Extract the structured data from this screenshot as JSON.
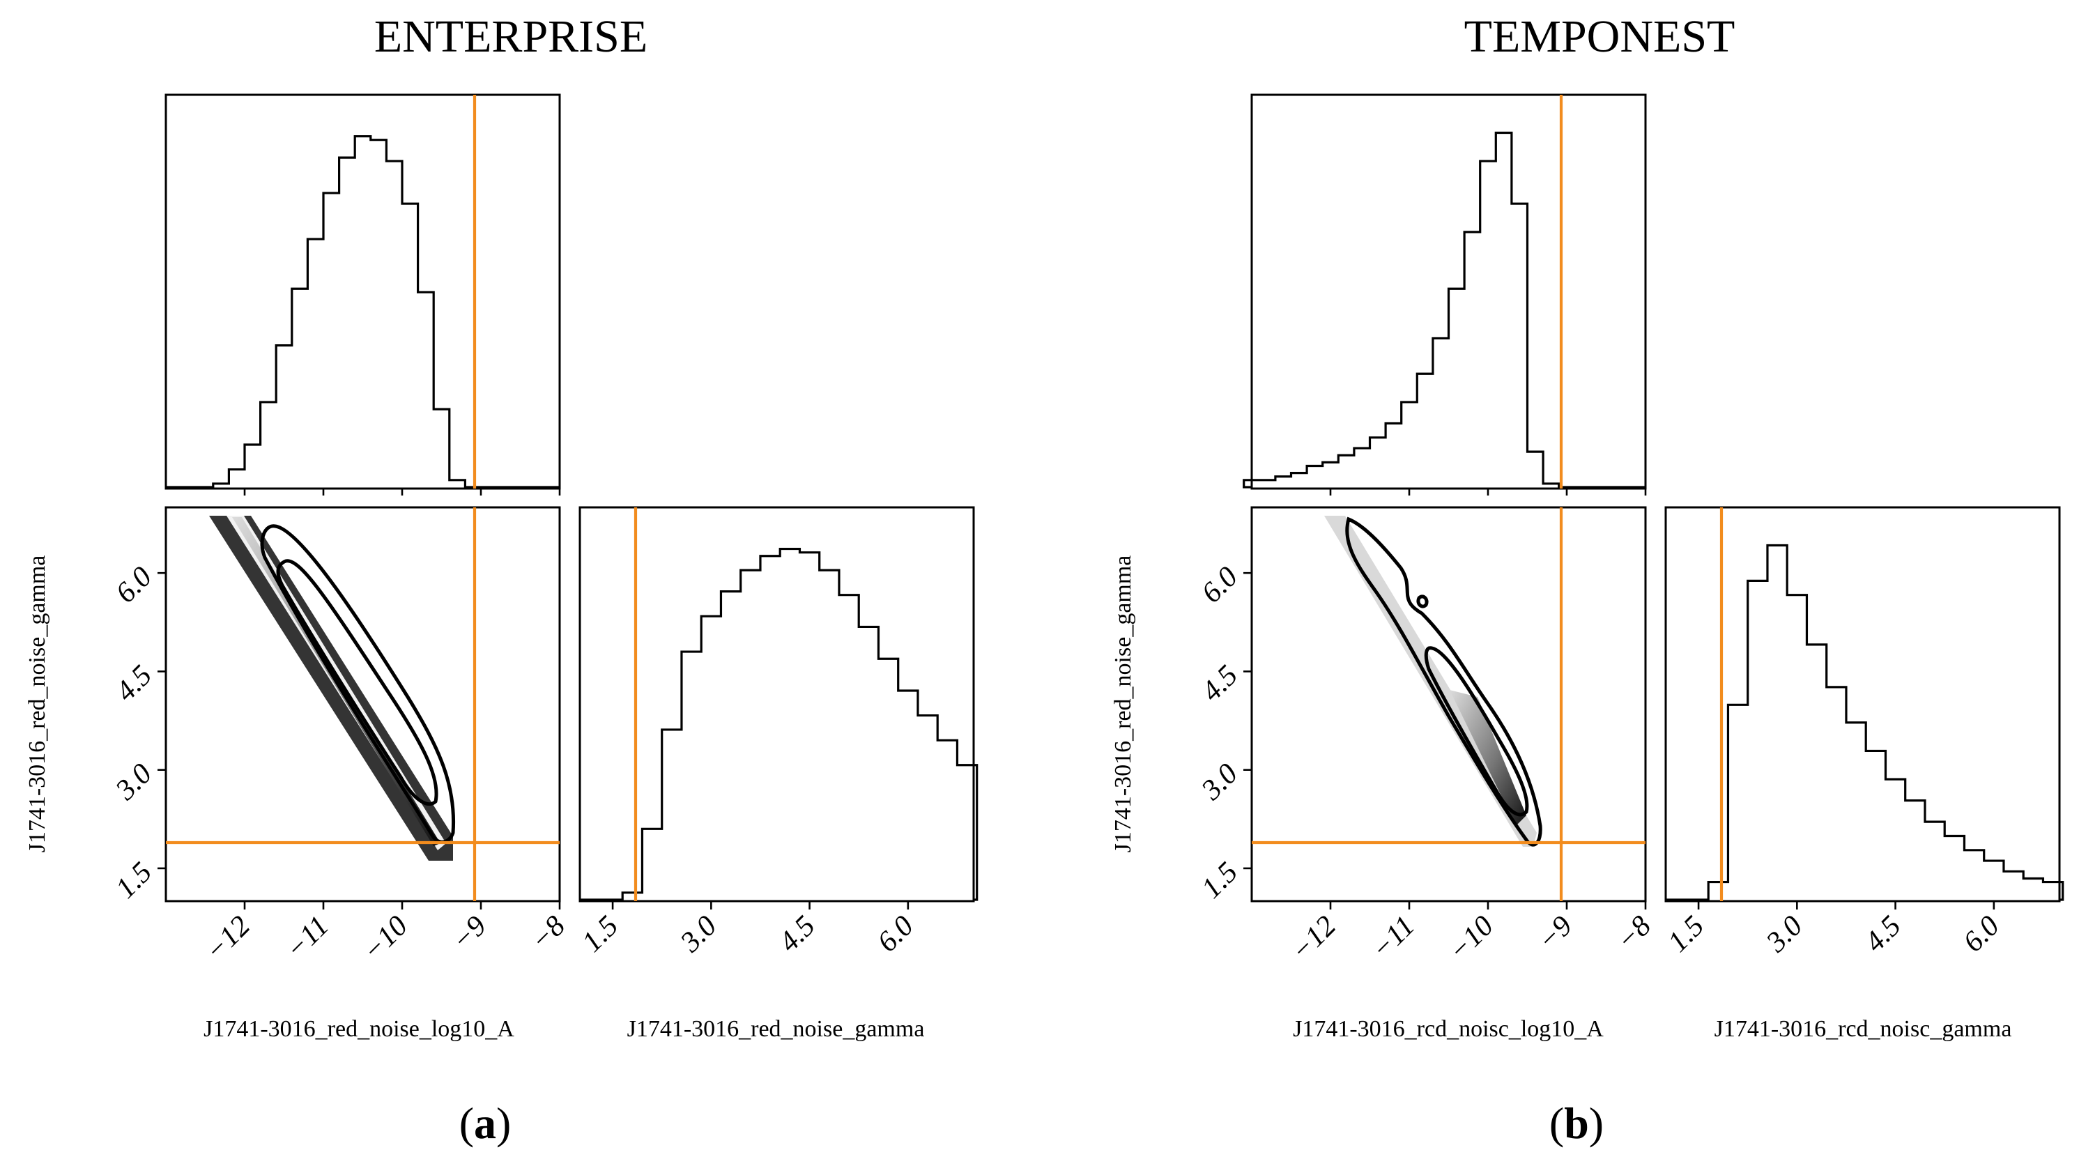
{
  "figure": {
    "captions": [
      "(a)",
      "(b)"
    ]
  },
  "chart_data": [
    {
      "type": "corner",
      "title": "ENTERPRISE",
      "caption": "(a)",
      "parameters": [
        "J1741-3016_red_noise_log10_A",
        "J1741-3016_red_noise_gamma"
      ],
      "xlabel_A": "J1741-3016_red_noise_log10_A",
      "xlabel_gamma": "J1741-3016_red_noise_gamma",
      "ylabel_gamma": "J1741-3016_red_noise_gamma",
      "range_log10_A": [
        -13,
        -8
      ],
      "range_gamma": [
        1.0,
        7.0
      ],
      "ticks_log10_A": [
        "−12",
        "−11",
        "−10",
        "−9",
        "−8"
      ],
      "ticks_gamma": [
        "1.5",
        "3.0",
        "4.5",
        "6.0"
      ],
      "truth": {
        "log10_A": -9.0,
        "gamma": 1.87
      },
      "hist_log10_A": {
        "x": [
          -12.3,
          -12.1,
          -11.9,
          -11.7,
          -11.5,
          -11.3,
          -11.1,
          -10.9,
          -10.7,
          -10.5,
          -10.3,
          -10.1,
          -9.9,
          -9.7,
          -9.5,
          -9.3
        ],
        "density": [
          0.01,
          0.05,
          0.12,
          0.24,
          0.4,
          0.56,
          0.7,
          0.83,
          0.93,
          0.99,
          0.98,
          0.92,
          0.8,
          0.55,
          0.22,
          0.02
        ]
      },
      "hist_gamma": {
        "x": [
          1.8,
          2.1,
          2.4,
          2.7,
          3.0,
          3.3,
          3.6,
          3.9,
          4.2,
          4.5,
          4.8,
          5.1,
          5.4,
          5.7,
          6.0,
          6.3,
          6.6,
          6.9
        ],
        "density": [
          0.02,
          0.2,
          0.48,
          0.7,
          0.8,
          0.87,
          0.93,
          0.97,
          0.99,
          0.98,
          0.93,
          0.86,
          0.77,
          0.68,
          0.59,
          0.52,
          0.45,
          0.38
        ]
      },
      "joint": {
        "ridge_log10_A": [
          -12.0,
          -9.4
        ],
        "ridge_gamma": [
          7.0,
          1.85
        ],
        "contour_levels": 2
      }
    },
    {
      "type": "corner",
      "title": "TEMPONEST",
      "caption": "(b)",
      "parameters": [
        "J1741-3016_red_noise_log10_A",
        "J1741-3016_red_noise_gamma"
      ],
      "xlabel_A": "J1741-3016_rcd_noisc_log10_A",
      "xlabel_gamma": "J1741-3016_rcd_noisc_gamma",
      "ylabel_gamma": "J1741-3016_red_noise_gamma",
      "range_log10_A": [
        -13,
        -8
      ],
      "range_gamma": [
        1.0,
        7.0
      ],
      "ticks_log10_A": [
        "−12",
        "−11",
        "−10",
        "−9",
        "−8"
      ],
      "ticks_gamma": [
        "1.5",
        "3.0",
        "4.5",
        "6.0"
      ],
      "truth": {
        "log10_A": -9.0,
        "gamma": 1.87
      },
      "hist_log10_A": {
        "x": [
          -13.0,
          -12.8,
          -12.6,
          -12.4,
          -12.2,
          -12.0,
          -11.8,
          -11.6,
          -11.4,
          -11.2,
          -11.0,
          -10.8,
          -10.6,
          -10.4,
          -10.2,
          -10.0,
          -9.8,
          -9.6,
          -9.4,
          -9.2
        ],
        "density": [
          0.02,
          0.02,
          0.03,
          0.04,
          0.06,
          0.07,
          0.09,
          0.11,
          0.14,
          0.18,
          0.24,
          0.32,
          0.42,
          0.56,
          0.72,
          0.92,
          1.0,
          0.8,
          0.1,
          0.01
        ]
      },
      "hist_gamma": {
        "x": [
          1.8,
          2.1,
          2.4,
          2.7,
          3.0,
          3.3,
          3.6,
          3.9,
          4.2,
          4.5,
          4.8,
          5.1,
          5.4,
          5.7,
          6.0,
          6.3,
          6.6,
          6.9
        ],
        "density": [
          0.05,
          0.55,
          0.9,
          1.0,
          0.86,
          0.72,
          0.6,
          0.5,
          0.42,
          0.34,
          0.28,
          0.22,
          0.18,
          0.14,
          0.11,
          0.08,
          0.06,
          0.05
        ]
      },
      "joint": {
        "ridge_log10_A": [
          -12.0,
          -9.4
        ],
        "ridge_gamma": [
          7.0,
          1.85
        ],
        "contour_levels": 2
      }
    }
  ]
}
